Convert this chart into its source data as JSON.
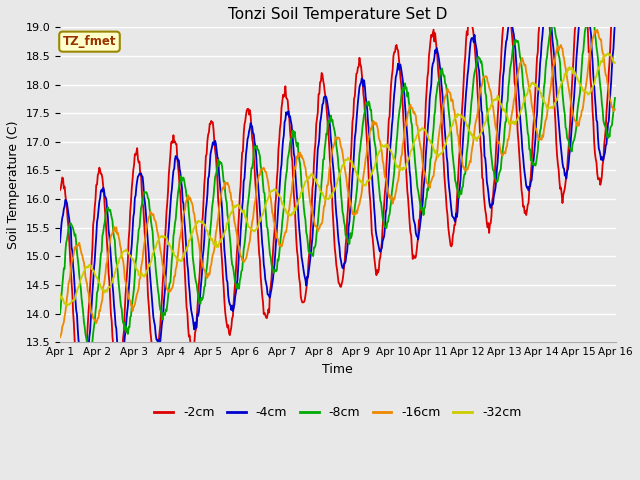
{
  "title": "Tonzi Soil Temperature Set D",
  "xlabel": "Time",
  "ylabel": "Soil Temperature (C)",
  "ylim": [
    13.5,
    19.0
  ],
  "yticks": [
    13.5,
    14.0,
    14.5,
    15.0,
    15.5,
    16.0,
    16.5,
    17.0,
    17.5,
    18.0,
    18.5,
    19.0
  ],
  "xtick_labels": [
    "Apr 1",
    "Apr 2",
    "Apr 3",
    "Apr 4",
    "Apr 5",
    "Apr 6",
    "Apr 7",
    "Apr 8",
    "Apr 9",
    "Apr 10",
    "Apr 11",
    "Apr 12",
    "Apr 13",
    "Apr 14",
    "Apr 15",
    "Apr 16"
  ],
  "colors": {
    "-2cm": "#dd0000",
    "-4cm": "#0000cc",
    "-8cm": "#00aa00",
    "-16cm": "#ee8800",
    "-32cm": "#cccc00"
  },
  "legend_label": "TZ_fmet",
  "legend_box_facecolor": "#ffffcc",
  "legend_box_edgecolor": "#998800",
  "fig_facecolor": "#e8e8e8",
  "axes_facecolor": "#e8e8e8",
  "grid_color": "#ffffff",
  "n_days": 15,
  "ppd": 48,
  "base_temp": 14.35,
  "trend_per_day": 0.265,
  "amp_2cm": 1.9,
  "amp_4cm": 1.55,
  "amp_8cm": 1.15,
  "amp_16cm": 0.75,
  "amp_32cm": 0.28,
  "phase_2cm": -0.18,
  "phase_4cm": -0.1,
  "phase_8cm": 0.05,
  "phase_16cm": 0.22,
  "phase_32cm": 0.5
}
